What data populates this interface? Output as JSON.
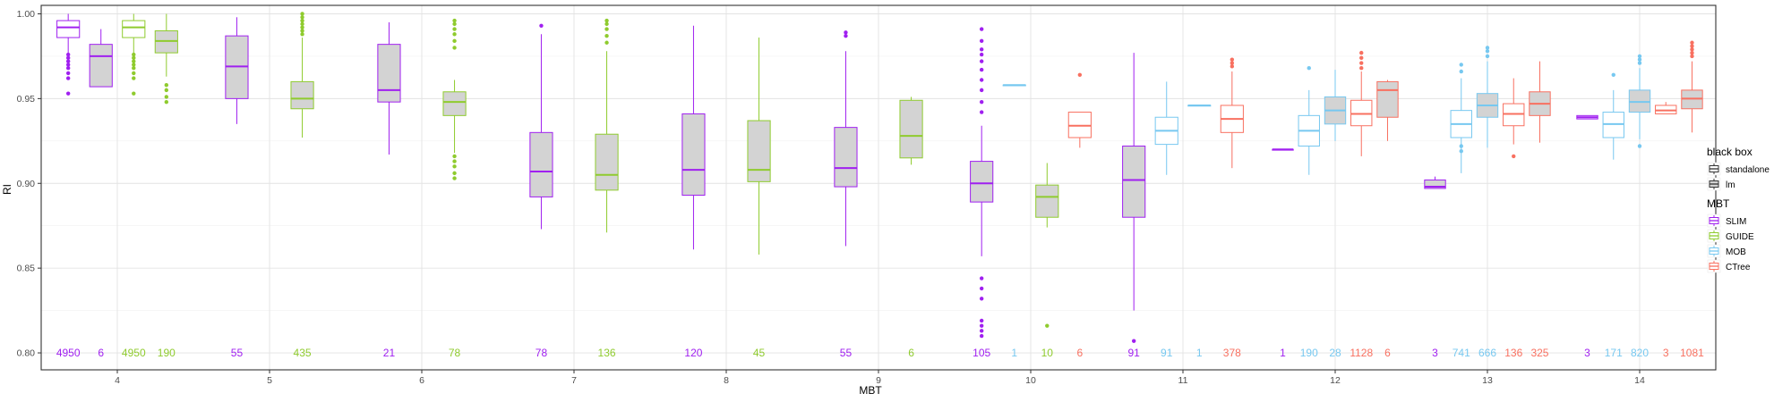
{
  "chart_data": {
    "type": "box",
    "xlabel": "MBT",
    "ylabel": "RI",
    "ylim": [
      0.79,
      1.005
    ],
    "y_ticks": [
      "0.80",
      "0.85",
      "0.90",
      "0.95",
      "1.00"
    ],
    "y_tick_values": [
      0.8,
      0.85,
      0.9,
      0.95,
      1.0
    ],
    "categories": [
      "4",
      "5",
      "6",
      "7",
      "8",
      "9",
      "10",
      "11",
      "12",
      "13",
      "14"
    ],
    "grid": true,
    "legend_position": "right",
    "legend": {
      "black_box_title": "black box",
      "black_box_items": [
        {
          "label": "standalone",
          "fill": "#ffffff"
        },
        {
          "label": "lm",
          "fill": "#d3d3d3"
        }
      ],
      "mbt_title": "MBT",
      "mbt_items": [
        {
          "label": "SLIM",
          "color": "#a020f0"
        },
        {
          "label": "GUIDE",
          "color": "#8fcb2e"
        },
        {
          "label": "MOB",
          "color": "#77c8f0"
        },
        {
          "label": "CTree",
          "color": "#f87060"
        }
      ]
    },
    "colors": {
      "SLIM": "#a020f0",
      "GUIDE": "#8fcb2e",
      "MOB": "#77c8f0",
      "CTree": "#f87060"
    },
    "count_y": 0.8,
    "groups": [
      {
        "x": "4",
        "series": "SLIM",
        "black_box": "standalone",
        "count": "4950",
        "q1": 0.986,
        "median": 0.992,
        "q3": 0.996,
        "lo": 0.977,
        "hi": 1.0,
        "outliers": [
          0.953,
          0.962,
          0.965,
          0.968,
          0.97,
          0.972,
          0.974,
          0.976
        ]
      },
      {
        "x": "4",
        "series": "SLIM",
        "black_box": "lm",
        "count": "6",
        "q1": 0.957,
        "median": 0.975,
        "q3": 0.982,
        "lo": 0.957,
        "hi": 0.991,
        "outliers": []
      },
      {
        "x": "4",
        "series": "GUIDE",
        "black_box": "standalone",
        "count": "4950",
        "q1": 0.986,
        "median": 0.992,
        "q3": 0.996,
        "lo": 0.977,
        "hi": 1.0,
        "outliers": [
          0.953,
          0.962,
          0.965,
          0.968,
          0.97,
          0.972,
          0.974,
          0.976
        ]
      },
      {
        "x": "4",
        "series": "GUIDE",
        "black_box": "lm",
        "count": "190",
        "q1": 0.977,
        "median": 0.984,
        "q3": 0.99,
        "lo": 0.963,
        "hi": 1.0,
        "outliers": [
          0.948,
          0.951,
          0.955,
          0.958
        ]
      },
      {
        "x": "5",
        "series": "SLIM",
        "black_box": "lm",
        "count": "55",
        "q1": 0.95,
        "median": 0.969,
        "q3": 0.987,
        "lo": 0.935,
        "hi": 0.998,
        "outliers": []
      },
      {
        "x": "5",
        "series": "GUIDE",
        "black_box": "lm",
        "count": "435",
        "q1": 0.944,
        "median": 0.95,
        "q3": 0.96,
        "lo": 0.927,
        "hi": 0.986,
        "outliers": [
          0.988,
          0.99,
          0.992,
          0.994,
          0.996,
          0.998,
          1.0
        ]
      },
      {
        "x": "6",
        "series": "SLIM",
        "black_box": "lm",
        "count": "21",
        "q1": 0.948,
        "median": 0.955,
        "q3": 0.982,
        "lo": 0.917,
        "hi": 0.995,
        "outliers": []
      },
      {
        "x": "6",
        "series": "GUIDE",
        "black_box": "lm",
        "count": "78",
        "q1": 0.94,
        "median": 0.948,
        "q3": 0.954,
        "lo": 0.918,
        "hi": 0.961,
        "outliers": [
          0.903,
          0.906,
          0.91,
          0.913,
          0.916,
          0.98,
          0.984,
          0.988,
          0.991,
          0.994,
          0.996
        ]
      },
      {
        "x": "7",
        "series": "SLIM",
        "black_box": "lm",
        "count": "78",
        "q1": 0.892,
        "median": 0.907,
        "q3": 0.93,
        "lo": 0.873,
        "hi": 0.988,
        "outliers": [
          0.993
        ]
      },
      {
        "x": "7",
        "series": "GUIDE",
        "black_box": "lm",
        "count": "136",
        "q1": 0.896,
        "median": 0.905,
        "q3": 0.929,
        "lo": 0.871,
        "hi": 0.978,
        "outliers": [
          0.983,
          0.987,
          0.991,
          0.994,
          0.996
        ]
      },
      {
        "x": "8",
        "series": "SLIM",
        "black_box": "lm",
        "count": "120",
        "q1": 0.893,
        "median": 0.908,
        "q3": 0.941,
        "lo": 0.861,
        "hi": 0.993,
        "outliers": []
      },
      {
        "x": "8",
        "series": "GUIDE",
        "black_box": "lm",
        "count": "45",
        "q1": 0.901,
        "median": 0.908,
        "q3": 0.937,
        "lo": 0.858,
        "hi": 0.986,
        "outliers": []
      },
      {
        "x": "9",
        "series": "SLIM",
        "black_box": "lm",
        "count": "55",
        "q1": 0.898,
        "median": 0.909,
        "q3": 0.933,
        "lo": 0.863,
        "hi": 0.978,
        "outliers": [
          0.987,
          0.989
        ]
      },
      {
        "x": "9",
        "series": "GUIDE",
        "black_box": "lm",
        "count": "6",
        "q1": 0.915,
        "median": 0.928,
        "q3": 0.949,
        "lo": 0.911,
        "hi": 0.951,
        "outliers": []
      },
      {
        "x": "10",
        "series": "SLIM",
        "black_box": "lm",
        "count": "105",
        "q1": 0.889,
        "median": 0.9,
        "q3": 0.913,
        "lo": 0.857,
        "hi": 0.934,
        "outliers": [
          0.81,
          0.813,
          0.816,
          0.819,
          0.832,
          0.838,
          0.844,
          0.942,
          0.948,
          0.955,
          0.961,
          0.967,
          0.972,
          0.976,
          0.979,
          0.984,
          0.991
        ]
      },
      {
        "x": "10",
        "series": "GUIDE",
        "black_box": "lm",
        "count": "10",
        "q1": 0.88,
        "median": 0.892,
        "q3": 0.899,
        "lo": 0.874,
        "hi": 0.912,
        "outliers": [
          0.816
        ]
      },
      {
        "x": "10",
        "series": "MOB",
        "black_box": "standalone",
        "count": "1",
        "q1": 0.958,
        "median": 0.958,
        "q3": 0.958,
        "lo": 0.958,
        "hi": 0.958,
        "outliers": []
      },
      {
        "x": "10",
        "series": "CTree",
        "black_box": "standalone",
        "count": "6",
        "q1": 0.927,
        "median": 0.934,
        "q3": 0.942,
        "lo": 0.921,
        "hi": 0.942,
        "outliers": [
          0.964
        ]
      },
      {
        "x": "11",
        "series": "SLIM",
        "black_box": "lm",
        "count": "91",
        "q1": 0.88,
        "median": 0.902,
        "q3": 0.922,
        "lo": 0.825,
        "hi": 0.977,
        "outliers": [
          0.807
        ]
      },
      {
        "x": "11",
        "series": "MOB",
        "black_box": "standalone",
        "count": "91",
        "q1": 0.923,
        "median": 0.931,
        "q3": 0.939,
        "lo": 0.905,
        "hi": 0.96,
        "outliers": []
      },
      {
        "x": "11",
        "series": "MOB",
        "black_box": "lm",
        "count": "1",
        "q1": 0.946,
        "median": 0.946,
        "q3": 0.946,
        "lo": 0.946,
        "hi": 0.946,
        "outliers": []
      },
      {
        "x": "11",
        "series": "CTree",
        "black_box": "standalone",
        "count": "378",
        "q1": 0.93,
        "median": 0.938,
        "q3": 0.946,
        "lo": 0.909,
        "hi": 0.966,
        "outliers": [
          0.969,
          0.971,
          0.973
        ]
      },
      {
        "x": "12",
        "series": "SLIM",
        "black_box": "standalone",
        "count": "1",
        "q1": 0.92,
        "median": 0.92,
        "q3": 0.92,
        "lo": 0.92,
        "hi": 0.92,
        "outliers": []
      },
      {
        "x": "12",
        "series": "MOB",
        "black_box": "standalone",
        "count": "190",
        "q1": 0.922,
        "median": 0.931,
        "q3": 0.94,
        "lo": 0.905,
        "hi": 0.955,
        "outliers": [
          0.968
        ]
      },
      {
        "x": "12",
        "series": "MOB",
        "black_box": "lm",
        "count": "28",
        "q1": 0.935,
        "median": 0.943,
        "q3": 0.951,
        "lo": 0.925,
        "hi": 0.967,
        "outliers": []
      },
      {
        "x": "12",
        "series": "CTree",
        "black_box": "standalone",
        "count": "1128",
        "q1": 0.934,
        "median": 0.941,
        "q3": 0.949,
        "lo": 0.916,
        "hi": 0.966,
        "outliers": [
          0.968,
          0.971,
          0.974,
          0.977
        ]
      },
      {
        "x": "12",
        "series": "CTree",
        "black_box": "lm",
        "count": "6",
        "q1": 0.939,
        "median": 0.955,
        "q3": 0.96,
        "lo": 0.925,
        "hi": 0.961,
        "outliers": []
      },
      {
        "x": "13",
        "series": "SLIM",
        "black_box": "lm",
        "count": "3",
        "q1": 0.897,
        "median": 0.898,
        "q3": 0.902,
        "lo": 0.897,
        "hi": 0.904,
        "outliers": []
      },
      {
        "x": "13",
        "series": "MOB",
        "black_box": "standalone",
        "count": "741",
        "q1": 0.927,
        "median": 0.935,
        "q3": 0.943,
        "lo": 0.906,
        "hi": 0.962,
        "outliers": [
          0.966,
          0.97,
          0.919,
          0.922
        ]
      },
      {
        "x": "13",
        "series": "MOB",
        "black_box": "lm",
        "count": "666",
        "q1": 0.939,
        "median": 0.946,
        "q3": 0.953,
        "lo": 0.921,
        "hi": 0.972,
        "outliers": [
          0.975,
          0.978,
          0.98
        ]
      },
      {
        "x": "13",
        "series": "CTree",
        "black_box": "standalone",
        "count": "136",
        "q1": 0.934,
        "median": 0.941,
        "q3": 0.947,
        "lo": 0.923,
        "hi": 0.962,
        "outliers": [
          0.916
        ]
      },
      {
        "x": "13",
        "series": "CTree",
        "black_box": "lm",
        "count": "325",
        "q1": 0.94,
        "median": 0.947,
        "q3": 0.954,
        "lo": 0.924,
        "hi": 0.972,
        "outliers": []
      },
      {
        "x": "14",
        "series": "SLIM",
        "black_box": "standalone",
        "count": "3",
        "q1": 0.938,
        "median": 0.939,
        "q3": 0.94,
        "lo": 0.938,
        "hi": 0.94,
        "outliers": []
      },
      {
        "x": "14",
        "series": "MOB",
        "black_box": "standalone",
        "count": "171",
        "q1": 0.927,
        "median": 0.935,
        "q3": 0.942,
        "lo": 0.914,
        "hi": 0.955,
        "outliers": [
          0.964
        ]
      },
      {
        "x": "14",
        "series": "MOB",
        "black_box": "lm",
        "count": "820",
        "q1": 0.942,
        "median": 0.948,
        "q3": 0.955,
        "lo": 0.926,
        "hi": 0.968,
        "outliers": [
          0.922,
          0.971,
          0.973,
          0.975
        ]
      },
      {
        "x": "14",
        "series": "CTree",
        "black_box": "standalone",
        "count": "3",
        "q1": 0.941,
        "median": 0.943,
        "q3": 0.946,
        "lo": 0.941,
        "hi": 0.948,
        "outliers": []
      },
      {
        "x": "14",
        "series": "CTree",
        "black_box": "lm",
        "count": "1081",
        "q1": 0.944,
        "median": 0.95,
        "q3": 0.955,
        "lo": 0.93,
        "hi": 0.972,
        "outliers": [
          0.975,
          0.977,
          0.979,
          0.981,
          0.983
        ]
      }
    ]
  }
}
